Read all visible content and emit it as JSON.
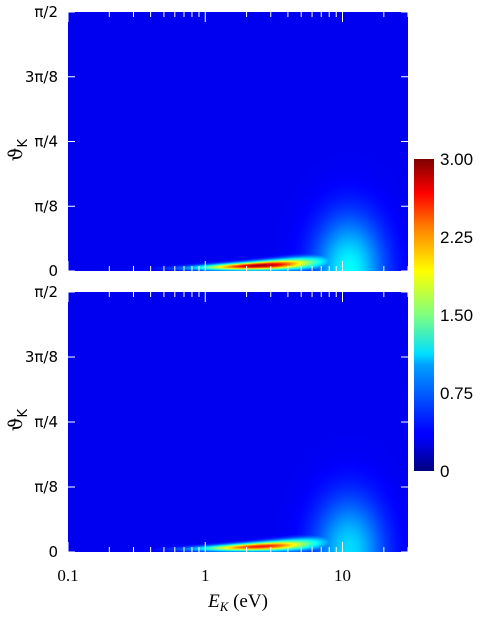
{
  "chart_data": {
    "type": "heatmap",
    "x_scale": "log",
    "xlim": [
      0.1,
      30
    ],
    "xlabel_main": "E",
    "xlabel_sub": "K",
    "xlabel_unit": " (eV)",
    "x_ticks": [
      {
        "value": 0.1,
        "label": "0.1"
      },
      {
        "value": 1,
        "label": "1"
      },
      {
        "value": 10,
        "label": "10"
      }
    ],
    "panels": [
      {
        "ylabel_main": "ϑ",
        "ylabel_sub": "K",
        "ylim": [
          0,
          1.5708
        ],
        "y_ticks": [
          {
            "value": 0,
            "label": "0"
          },
          {
            "value": 0.3927,
            "label": "π/8"
          },
          {
            "value": 0.7854,
            "label": "π/4"
          },
          {
            "value": 1.1781,
            "label": "3π/8"
          },
          {
            "value": 1.5708,
            "label": "π/2"
          }
        ],
        "peak_value": 3.0,
        "peak_at": {
          "energy_eV": 2.5,
          "angle_rad": 0.03
        }
      },
      {
        "ylabel_main": "ϑ",
        "ylabel_sub": "K",
        "ylim": [
          0,
          1.5708
        ],
        "y_ticks": [
          {
            "value": 0,
            "label": "0"
          },
          {
            "value": 0.3927,
            "label": "π/8"
          },
          {
            "value": 0.7854,
            "label": "π/4"
          },
          {
            "value": 1.1781,
            "label": "3π/8"
          },
          {
            "value": 1.5708,
            "label": "π/2"
          }
        ],
        "peak_value": 2.6,
        "peak_at": {
          "energy_eV": 2.5,
          "angle_rad": 0.02
        }
      }
    ],
    "colorbar": {
      "range": [
        0,
        3.0
      ],
      "ticks": [
        {
          "value": 3.0,
          "label": "3.00"
        },
        {
          "value": 2.25,
          "label": "2.25"
        },
        {
          "value": 1.5,
          "label": "1.50"
        },
        {
          "value": 0.75,
          "label": "0.75"
        },
        {
          "value": 0,
          "label": "0"
        }
      ],
      "colormap": "jet"
    }
  }
}
